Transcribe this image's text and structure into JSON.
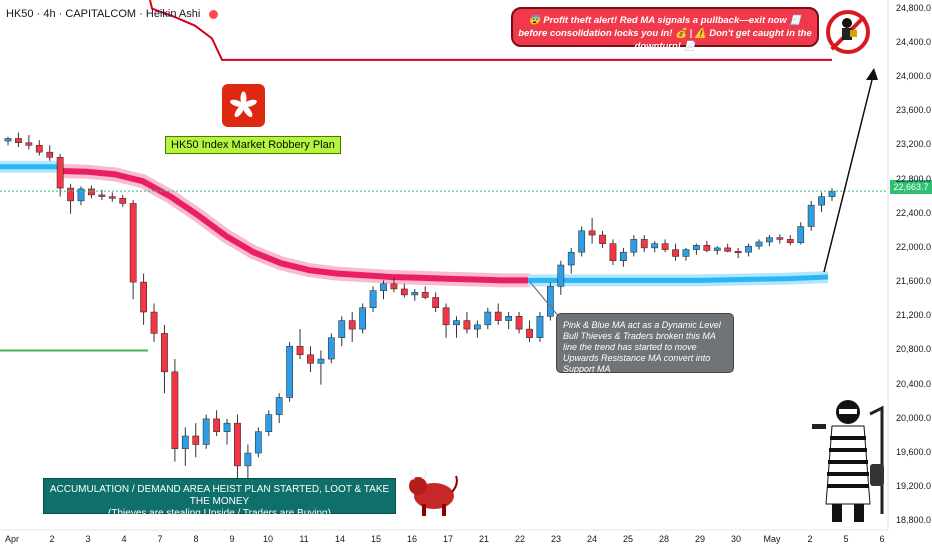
{
  "header": {
    "symbol": "HK50",
    "interval": "4h",
    "broker": "CAPITALCOM",
    "chart_style": "Heikin Ashi",
    "separator": "·"
  },
  "colors": {
    "up": "#22ab94",
    "up_candle": "#2e9de6",
    "down": "#f23645",
    "pink_ma": "#e91e63",
    "blue_ma": "#29b6f6",
    "red_line": "#d6001c",
    "green_line": "#4caf50",
    "last_price": "#2fbf71"
  },
  "current_price_label": "22,663.7",
  "annotations": {
    "plan_label": "HK50 Index Market Robbery Plan",
    "red_note_line1": "😨 Profit theft alert! Red MA signals a pullback—exit now 🧾",
    "red_note_line2": "before consolidation locks you in! 💰 | ⚠️ Don't get caught in the downturn! 📄",
    "gray_note": "Pink & Blue MA act as a Dynamic Level Bull Thieves & Traders broken this MA line the trend has started to move Upwards Resistance MA convert into Support MA",
    "teal_note_line1": "ACCUMULATION / DEMAND AREA HEIST PLAN STARTED, LOOT & TAKE THE MONEY",
    "teal_note_line2": "(Thieves are stealing Upside / Traders are Buying)"
  },
  "icons": [
    "hk-flag-icon",
    "bull-icon",
    "thief-icon",
    "no-entry-icon",
    "robber-woman-icon"
  ],
  "chart_data": {
    "type": "candlestick",
    "title": "",
    "xlabel": "",
    "ylabel": "",
    "ylim": [
      18700,
      24900
    ],
    "grid": false,
    "x_ticks": [
      "Apr",
      "2",
      "3",
      "4",
      "7",
      "8",
      "9",
      "10",
      "11",
      "14",
      "15",
      "16",
      "17",
      "21",
      "22",
      "23",
      "24",
      "25",
      "28",
      "29",
      "30",
      "May",
      "2",
      "5",
      "6"
    ],
    "y_ticks": [
      "24,800.0",
      "24,400.0",
      "24,000.0",
      "23,600.0",
      "23,200.0",
      "22,800.0",
      "22,400.0",
      "22,000.0",
      "21,600.0",
      "21,200.0",
      "20,800.0",
      "20,400.0",
      "20,000.0",
      "19,600.0",
      "19,200.0",
      "18,800.0"
    ],
    "candles": [
      [
        23250,
        23300,
        23200,
        23280
      ],
      [
        23280,
        23350,
        23180,
        23230
      ],
      [
        23230,
        23320,
        23150,
        23200
      ],
      [
        23200,
        23260,
        23080,
        23120
      ],
      [
        23120,
        23200,
        23020,
        23060
      ],
      [
        23060,
        23100,
        22600,
        22700
      ],
      [
        22700,
        22750,
        22400,
        22550
      ],
      [
        22550,
        22720,
        22500,
        22690
      ],
      [
        22690,
        22730,
        22580,
        22620
      ],
      [
        22620,
        22680,
        22560,
        22600
      ],
      [
        22600,
        22650,
        22540,
        22580
      ],
      [
        22580,
        22620,
        22480,
        22520
      ],
      [
        22520,
        22560,
        21400,
        21600
      ],
      [
        21600,
        21700,
        21100,
        21250
      ],
      [
        21250,
        21350,
        20900,
        21000
      ],
      [
        21000,
        21100,
        20300,
        20550
      ],
      [
        20550,
        20700,
        19500,
        19650
      ],
      [
        19650,
        19900,
        19450,
        19800
      ],
      [
        19800,
        19950,
        19550,
        19700
      ],
      [
        19700,
        20050,
        19650,
        20000
      ],
      [
        20000,
        20100,
        19800,
        19850
      ],
      [
        19850,
        20000,
        19700,
        19950
      ],
      [
        19950,
        20050,
        19300,
        19450
      ],
      [
        19450,
        19700,
        19250,
        19600
      ],
      [
        19600,
        19900,
        19550,
        19850
      ],
      [
        19850,
        20100,
        19800,
        20050
      ],
      [
        20050,
        20300,
        19950,
        20250
      ],
      [
        20250,
        20900,
        20200,
        20850
      ],
      [
        20850,
        21050,
        20700,
        20750
      ],
      [
        20750,
        20850,
        20550,
        20650
      ],
      [
        20650,
        20800,
        20400,
        20700
      ],
      [
        20700,
        21000,
        20650,
        20950
      ],
      [
        20950,
        21200,
        20850,
        21150
      ],
      [
        21150,
        21250,
        20900,
        21050
      ],
      [
        21050,
        21350,
        21000,
        21300
      ],
      [
        21300,
        21550,
        21250,
        21500
      ],
      [
        21500,
        21620,
        21400,
        21580
      ],
      [
        21580,
        21650,
        21480,
        21520
      ],
      [
        21520,
        21580,
        21420,
        21450
      ],
      [
        21450,
        21520,
        21380,
        21480
      ],
      [
        21480,
        21550,
        21400,
        21420
      ],
      [
        21420,
        21480,
        21250,
        21300
      ],
      [
        21300,
        21350,
        20950,
        21100
      ],
      [
        21100,
        21200,
        20950,
        21150
      ],
      [
        21150,
        21250,
        21000,
        21050
      ],
      [
        21050,
        21150,
        20950,
        21100
      ],
      [
        21100,
        21300,
        21050,
        21250
      ],
      [
        21250,
        21350,
        21100,
        21150
      ],
      [
        21150,
        21250,
        21050,
        21200
      ],
      [
        21200,
        21250,
        21000,
        21050
      ],
      [
        21050,
        21150,
        20900,
        20950
      ],
      [
        20950,
        21250,
        20900,
        21200
      ],
      [
        21200,
        21600,
        21150,
        21550
      ],
      [
        21550,
        21850,
        21450,
        21800
      ],
      [
        21800,
        22000,
        21700,
        21950
      ],
      [
        21950,
        22250,
        21900,
        22200
      ],
      [
        22200,
        22350,
        22050,
        22150
      ],
      [
        22150,
        22200,
        22000,
        22050
      ],
      [
        22050,
        22100,
        21800,
        21850
      ],
      [
        21850,
        22000,
        21780,
        21950
      ],
      [
        21950,
        22150,
        21900,
        22100
      ],
      [
        22100,
        22150,
        21950,
        22000
      ],
      [
        22000,
        22080,
        21950,
        22050
      ],
      [
        22050,
        22100,
        21950,
        21980
      ],
      [
        21980,
        22050,
        21850,
        21900
      ],
      [
        21900,
        22000,
        21850,
        21980
      ],
      [
        21980,
        22050,
        21920,
        22030
      ],
      [
        22030,
        22080,
        21950,
        21970
      ],
      [
        21970,
        22020,
        21920,
        22000
      ],
      [
        22000,
        22050,
        21950,
        21960
      ],
      [
        21960,
        22000,
        21880,
        21950
      ],
      [
        21950,
        22050,
        21900,
        22020
      ],
      [
        22020,
        22100,
        21980,
        22070
      ],
      [
        22070,
        22150,
        22020,
        22120
      ],
      [
        22120,
        22160,
        22050,
        22100
      ],
      [
        22100,
        22150,
        22030,
        22060
      ],
      [
        22060,
        22300,
        22040,
        22250
      ],
      [
        22250,
        22550,
        22200,
        22500
      ],
      [
        22500,
        22650,
        22420,
        22600
      ],
      [
        22600,
        22700,
        22550,
        22663
      ]
    ],
    "series": [
      {
        "name": "",
        "color": "pink",
        "values": [
          22900,
          22890,
          22860,
          22780,
          22600,
          22380,
          22140,
          21950,
          21820,
          21740,
          21700,
          21680,
          21660,
          21650,
          21640,
          21630,
          21620,
          21620
        ]
      },
      {
        "name": "",
        "color": "blue",
        "values": [
          22950,
          22950,
          22950,
          22950,
          22950,
          22950,
          21620,
          21620,
          21620,
          21620,
          21620,
          21630,
          21640,
          21660
        ]
      }
    ],
    "red_level": 24200,
    "green_level": 20800,
    "last_price": 22663.7
  }
}
